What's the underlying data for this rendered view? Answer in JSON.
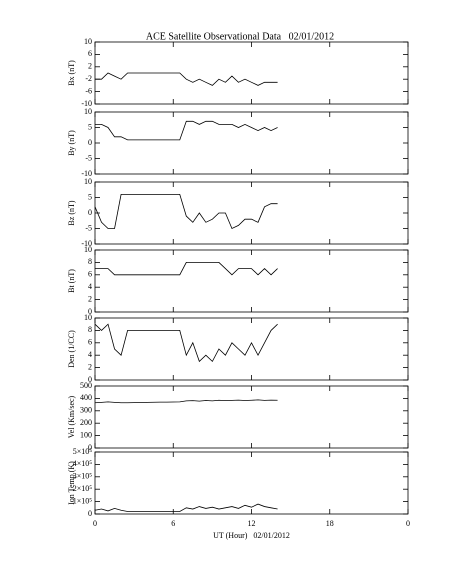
{
  "chart_data": [
    {
      "type": "line",
      "title": "ACE Satellite Observational Data   02/01/2012",
      "ylabel": "Bx (nT)",
      "x": [
        0,
        0.5,
        1,
        1.5,
        2,
        2.5,
        3,
        3.5,
        4,
        4.5,
        5,
        5.5,
        6,
        6.5,
        7,
        7.5,
        8,
        8.5,
        9,
        9.5,
        10,
        10.5,
        11,
        11.5,
        12,
        12.5,
        13,
        13.5,
        14
      ],
      "values": [
        -2,
        -2,
        0,
        -1,
        -2,
        0,
        0,
        0,
        0,
        0,
        0,
        0,
        0,
        0,
        -2,
        -3,
        -2,
        -3,
        -4,
        -2,
        -3,
        -1,
        -3,
        -2,
        -3,
        -4,
        -3,
        -3,
        -3
      ],
      "color": "#000000",
      "xlim": [
        0,
        24
      ],
      "ylim": [
        -10,
        10
      ],
      "yticks": [
        -10,
        -6,
        -2,
        2,
        6,
        10
      ]
    },
    {
      "type": "line",
      "ylabel": "By (nT)",
      "x": [
        0,
        0.5,
        1,
        1.5,
        2,
        2.5,
        3,
        3.5,
        4,
        4.5,
        5,
        5.5,
        6,
        6.5,
        7,
        7.5,
        8,
        8.5,
        9,
        9.5,
        10,
        10.5,
        11,
        11.5,
        12,
        12.5,
        13,
        13.5,
        14
      ],
      "values": [
        6,
        6,
        5,
        2,
        2,
        1,
        1,
        1,
        1,
        1,
        1,
        1,
        1,
        1,
        7,
        7,
        6,
        7,
        7,
        6,
        6,
        6,
        5,
        6,
        5,
        4,
        5,
        4,
        5
      ],
      "color": "#000000",
      "xlim": [
        0,
        24
      ],
      "ylim": [
        -10,
        10
      ],
      "yticks": [
        -10,
        -5,
        0,
        5,
        10
      ]
    },
    {
      "type": "line",
      "ylabel": "Bz (nT)",
      "x": [
        0,
        0.5,
        1,
        1.5,
        2,
        2.5,
        3,
        3.5,
        4,
        4.5,
        5,
        5.5,
        6,
        6.5,
        7,
        7.5,
        8,
        8.5,
        9,
        9.5,
        10,
        10.5,
        11,
        11.5,
        12,
        12.5,
        13,
        13.5,
        14
      ],
      "values": [
        2,
        -3,
        -5,
        -5,
        6,
        6,
        6,
        6,
        6,
        6,
        6,
        6,
        6,
        6,
        -1,
        -3,
        0,
        -3,
        -2,
        0,
        0,
        -5,
        -4,
        -2,
        -2,
        -3,
        2,
        3,
        3
      ],
      "color": "#000000",
      "xlim": [
        0,
        24
      ],
      "ylim": [
        -10,
        10
      ],
      "yticks": [
        -10,
        -5,
        0,
        5,
        10
      ]
    },
    {
      "type": "line",
      "ylabel": "Bt (nT)",
      "x": [
        0,
        0.5,
        1,
        1.5,
        2,
        2.5,
        3,
        3.5,
        4,
        4.5,
        5,
        5.5,
        6,
        6.5,
        7,
        7.5,
        8,
        8.5,
        9,
        9.5,
        10,
        10.5,
        11,
        11.5,
        12,
        12.5,
        13,
        13.5,
        14
      ],
      "values": [
        7,
        7,
        7,
        6,
        6,
        6,
        6,
        6,
        6,
        6,
        6,
        6,
        6,
        6,
        8,
        8,
        8,
        8,
        8,
        8,
        7,
        6,
        7,
        7,
        7,
        6,
        7,
        6,
        7
      ],
      "color": "#000000",
      "xlim": [
        0,
        24
      ],
      "ylim": [
        0,
        10
      ],
      "yticks": [
        0,
        2,
        4,
        6,
        8,
        10
      ]
    },
    {
      "type": "line",
      "ylabel": "Den (1/CC)",
      "x": [
        0,
        0.5,
        1,
        1.5,
        2,
        2.5,
        3,
        3.5,
        4,
        4.5,
        5,
        5.5,
        6,
        6.5,
        7,
        7.5,
        8,
        8.5,
        9,
        9.5,
        10,
        10.5,
        11,
        11.5,
        12,
        12.5,
        13,
        13.5,
        14
      ],
      "values": [
        9,
        8,
        9,
        5,
        4,
        8,
        8,
        8,
        8,
        8,
        8,
        8,
        8,
        8,
        4,
        6,
        3,
        4,
        3,
        5,
        4,
        6,
        5,
        4,
        6,
        4,
        6,
        8,
        9
      ],
      "color": "#000000",
      "xlim": [
        0,
        24
      ],
      "ylim": [
        0,
        10
      ],
      "yticks": [
        0,
        2,
        4,
        6,
        8,
        10
      ]
    },
    {
      "type": "line",
      "ylabel": "Vel (Km/sec)",
      "x": [
        0,
        0.5,
        1,
        1.5,
        2,
        2.5,
        3,
        3.5,
        4,
        4.5,
        5,
        5.5,
        6,
        6.5,
        7,
        7.5,
        8,
        8.5,
        9,
        9.5,
        10,
        10.5,
        11,
        11.5,
        12,
        12.5,
        13,
        13.5,
        14
      ],
      "values": [
        365,
        368,
        372,
        368,
        365,
        365,
        366,
        367,
        368,
        369,
        370,
        370,
        371,
        372,
        380,
        382,
        378,
        383,
        380,
        385,
        382,
        384,
        386,
        383,
        385,
        388,
        384,
        386,
        385
      ],
      "color": "#000000",
      "xlim": [
        0,
        24
      ],
      "ylim": [
        0,
        500
      ],
      "yticks": [
        0,
        100,
        200,
        300,
        400,
        500
      ]
    },
    {
      "type": "line",
      "ylabel": "Ion Temp (K)",
      "xlabel": "UT (Hour)   02/01/2012",
      "x": [
        0,
        0.5,
        1,
        1.5,
        2,
        2.5,
        3,
        3.5,
        4,
        4.5,
        5,
        5.5,
        6,
        6.5,
        7,
        7.5,
        8,
        8.5,
        9,
        9.5,
        10,
        10.5,
        11,
        11.5,
        12,
        12.5,
        13,
        13.5,
        14
      ],
      "values": [
        30000,
        40000,
        25000,
        45000,
        30000,
        20000,
        20000,
        20000,
        20000,
        20000,
        20000,
        20000,
        20000,
        20000,
        50000,
        40000,
        60000,
        45000,
        55000,
        40000,
        50000,
        60000,
        45000,
        70000,
        55000,
        80000,
        60000,
        50000,
        40000
      ],
      "color": "#000000",
      "xlim": [
        0,
        24
      ],
      "xticks": [
        0,
        6,
        12,
        18,
        {
          "value": 24,
          "label": "0"
        }
      ],
      "ylim": [
        0,
        500000
      ],
      "yticks": [
        0,
        {
          "value": 100000,
          "label": "1×10⁵"
        },
        {
          "value": 200000,
          "label": "2×10⁵"
        },
        {
          "value": 300000,
          "label": "3×10⁵"
        },
        {
          "value": 400000,
          "label": "4×10⁵"
        },
        {
          "value": 500000,
          "label": "5×10⁵"
        }
      ]
    }
  ]
}
